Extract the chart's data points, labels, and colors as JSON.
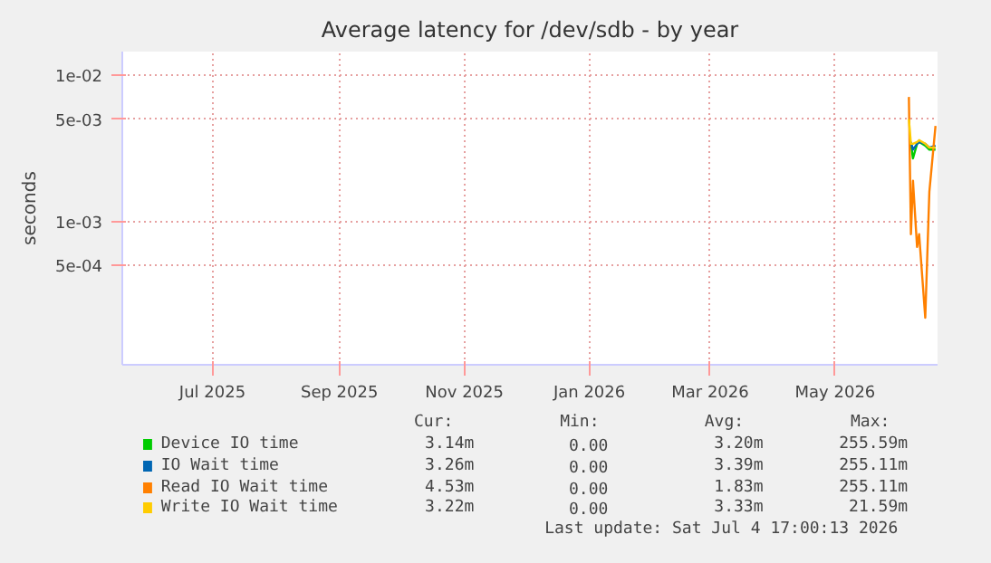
{
  "chart_data": {
    "type": "line",
    "title": "Average latency for /dev/sdb - by year",
    "ylabel": "seconds",
    "x": [
      "2026-06-21",
      "2026-06-22",
      "2026-06-23",
      "2026-06-25",
      "2026-06-26",
      "2026-06-29",
      "2026-07-01",
      "2026-07-04"
    ],
    "series": [
      {
        "name": "Device IO time",
        "color": "#00cc00",
        "values": [
          null,
          0.0034,
          0.0027,
          0.0034,
          0.0035,
          0.0033,
          0.0031,
          0.0031
        ]
      },
      {
        "name": "IO Wait time",
        "color": "#0066b3",
        "values": [
          null,
          0.0035,
          0.0031,
          0.0034,
          0.0035,
          0.0034,
          0.0032,
          0.0033
        ]
      },
      {
        "name": "Read IO Wait time",
        "color": "#ff8000",
        "values": [
          0.0071,
          0.00082,
          0.0019,
          0.00067,
          0.00082,
          0.00022,
          0.0016,
          0.0045
        ]
      },
      {
        "name": "Write IO Wait time",
        "color": "#ffcc00",
        "values": [
          0.005,
          0.0034,
          0.0034,
          0.0035,
          0.0036,
          0.0034,
          0.0032,
          0.0032
        ]
      }
    ],
    "log": true,
    "xlim": [
      "2025-06-02",
      "2026-07-05"
    ],
    "xticks": [
      {
        "value": "2025-07-16",
        "label": "Jul 2025"
      },
      {
        "value": "2025-09-16",
        "label": "Sep 2025"
      },
      {
        "value": "2025-11-16",
        "label": "Nov 2025"
      },
      {
        "value": "2026-01-16",
        "label": "Jan 2026"
      },
      {
        "value": "2026-03-16",
        "label": "Mar 2026"
      },
      {
        "value": "2026-05-16",
        "label": "May 2026"
      }
    ],
    "ylim": [
      0.000105,
      0.0145
    ],
    "yticks": [
      {
        "value": 0.01,
        "label": "1e-02"
      },
      {
        "value": 0.005,
        "label": "5e-03"
      },
      {
        "value": 0.001,
        "label": "1e-03"
      },
      {
        "value": 0.0005,
        "label": "5e-04"
      }
    ],
    "grid": true,
    "legend": "bottom",
    "line_style": "solid",
    "marker": "none",
    "annotations": [
      "Cur:",
      "Min:",
      "Avg:",
      "Max:",
      "3.14m",
      "0.00",
      "3.20m",
      "255.59m",
      "3.26m",
      "0.00",
      "3.39m",
      "255.11m",
      "4.53m",
      "0.00",
      "1.83m",
      "255.11m",
      "3.22m",
      "0.00",
      "3.33m",
      "21.59m",
      "Last update: Sat Jul  4 17:00:13 2026"
    ]
  }
}
